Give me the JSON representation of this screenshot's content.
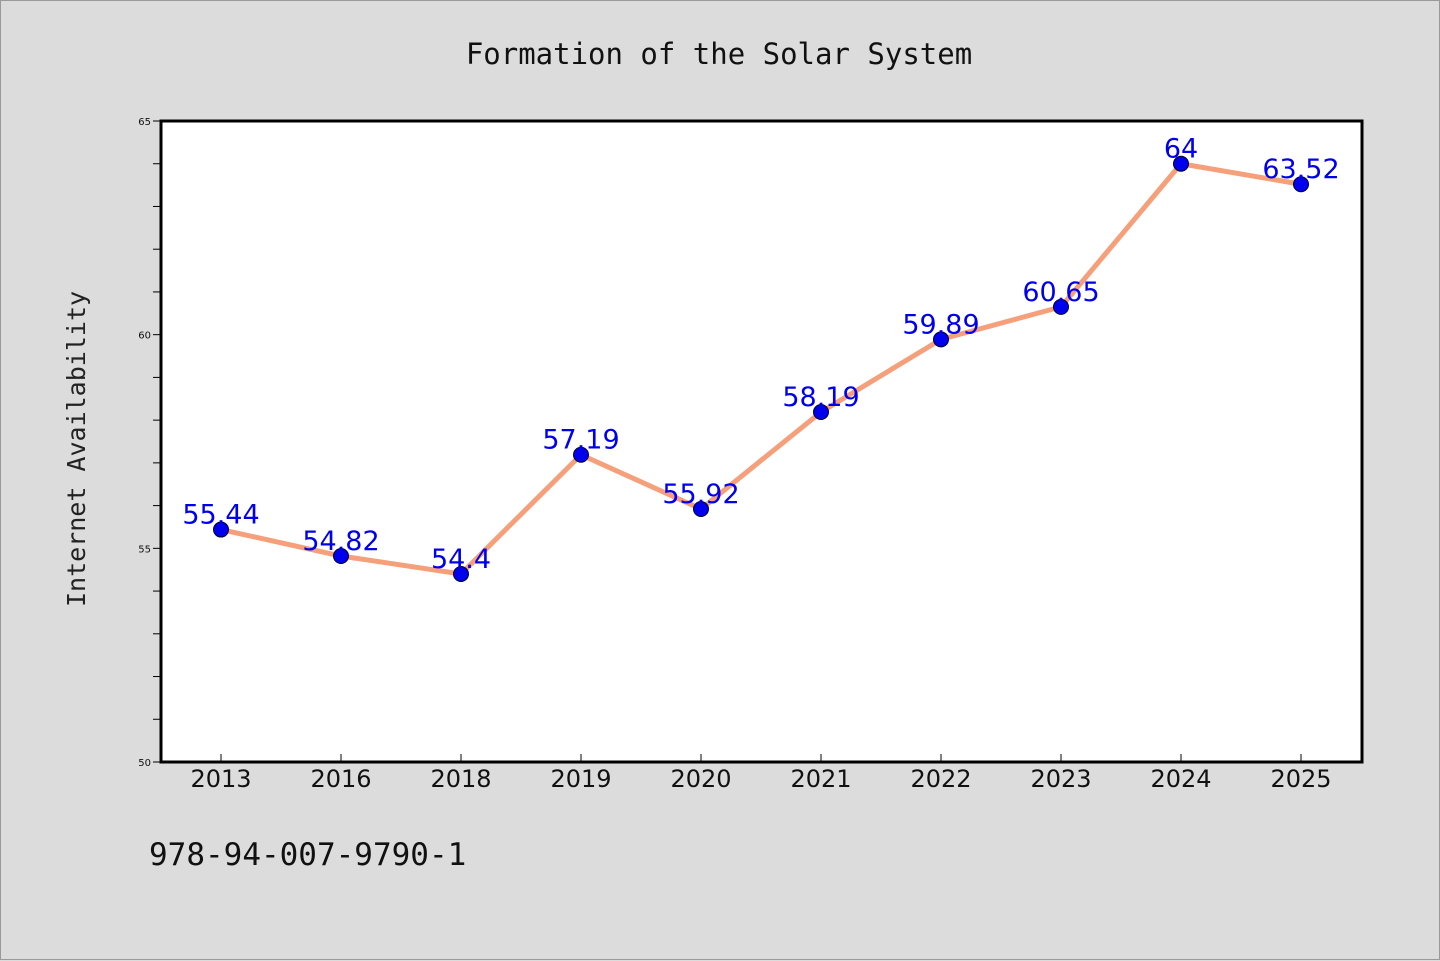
{
  "chart_data": {
    "type": "line",
    "title": "Formation of the Solar System",
    "xlabel": "",
    "ylabel": "Internet Availability",
    "categories": [
      "2013",
      "2016",
      "2018",
      "2019",
      "2020",
      "2021",
      "2022",
      "2023",
      "2024",
      "2025"
    ],
    "series": [
      {
        "values": [
          55.44,
          54.82,
          54.4,
          57.19,
          55.92,
          58.19,
          59.89,
          60.65,
          64,
          63.52
        ],
        "data_labels": [
          "55.44",
          "54.82",
          "54.4",
          "57.19",
          "55.92",
          "58.19",
          "59.89",
          "60.65",
          "64",
          "63.52"
        ],
        "line_color": "#f5a07a",
        "marker_color": "#0000ee"
      }
    ],
    "ylim": [
      50,
      65
    ],
    "yticks": [
      {
        "value": 50,
        "label": "50"
      },
      {
        "value": 55,
        "label": "55"
      },
      {
        "value": 60,
        "label": "60"
      },
      {
        "value": 65,
        "label": "65"
      }
    ],
    "grid": false,
    "legend": "none",
    "colors": {
      "background": "#dcdcdc",
      "plot_area": "#ffffff",
      "label": "#0000ee"
    }
  },
  "footer_text": "978-94-007-9790-1"
}
